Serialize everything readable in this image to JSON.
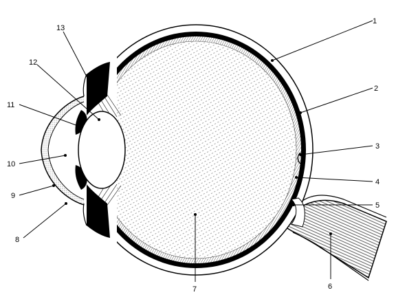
{
  "diagram": {
    "labels": {
      "l1": "1",
      "l2": "2",
      "l3": "3",
      "l4": "4",
      "l5": "5",
      "l6": "6",
      "l7": "7",
      "l8": "8",
      "l9": "9",
      "l10": "10",
      "l11": "11",
      "l12": "12",
      "l13": "13"
    }
  }
}
